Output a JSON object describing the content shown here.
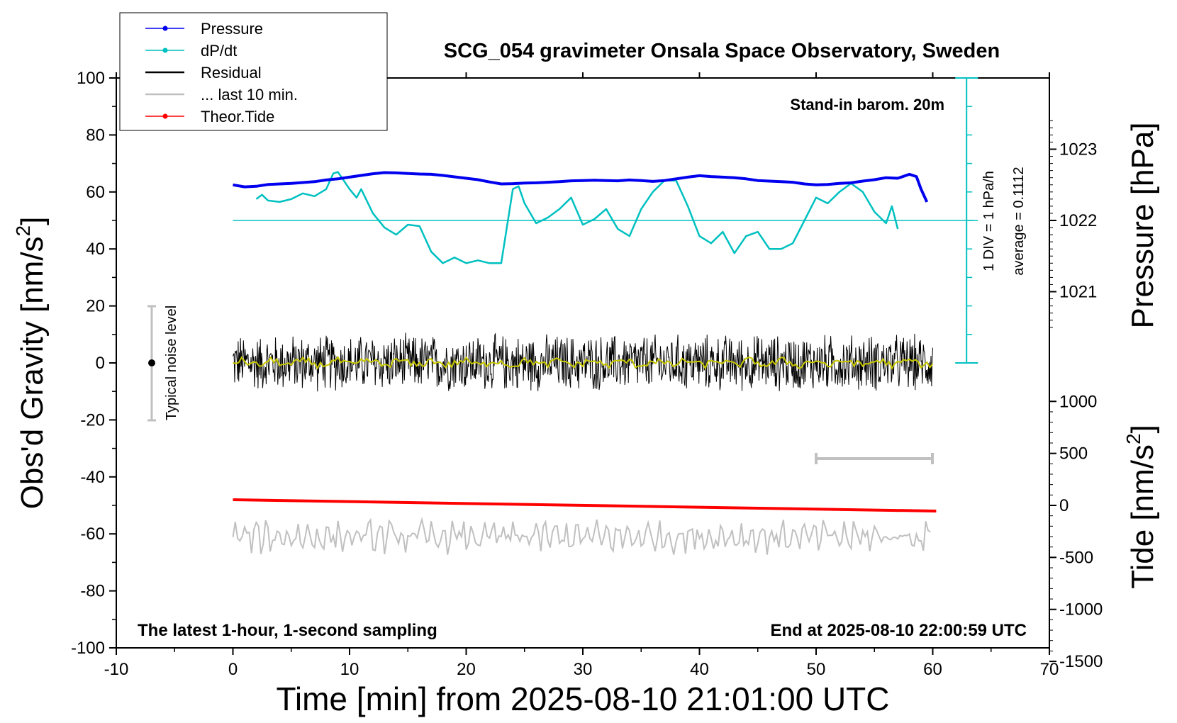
{
  "chart_data": {
    "type": "line",
    "title": "SCG_054 gravimeter Onsala Space Observatory, Sweden",
    "xlabel": "Time [min] from 2025-08-10 21:01:00 UTC",
    "ylabel_left": "Obs'd Gravity [nm/s",
    "ylabel_left_sup": "2",
    "ylabel_left_end": "]",
    "ylabel_right_top": "Pressure [hPa]",
    "ylabel_right_bottom": "Tide [nm/s",
    "ylabel_right_bottom_sup": "2",
    "ylabel_right_bottom_end": "]",
    "xlim": [
      -10,
      70
    ],
    "ylim": [
      -100,
      100
    ],
    "x_ticks": [
      "-10",
      "0",
      "10",
      "20",
      "30",
      "40",
      "50",
      "60",
      "70"
    ],
    "y_ticks": [
      "100",
      "80",
      "60",
      "40",
      "20",
      "0",
      "-20",
      "-40",
      "-60",
      "-80",
      "-100"
    ],
    "pressure_ticks": [
      "1023",
      "1022",
      "1021"
    ],
    "tide_ticks": [
      "1000",
      "500",
      "0",
      "-500",
      "-1000",
      "-1500"
    ],
    "pressure_axis": {
      "value_at_gravity_50": 1022,
      "hpa_per_nm": 0.04
    },
    "tide_axis": {
      "value_at_gravity_neg50": 0,
      "nm_per_gravity_unit": 27.4
    },
    "notes": {
      "standin": "Stand-in barom. 20m",
      "latest": "The latest 1-hour, 1-second sampling",
      "end": "End at 2025-08-10 22:00:59 UTC",
      "div": "1 DIV = 1 hPa/h",
      "average": "average = 0.1112",
      "noise": "Typical noise level"
    },
    "colors": {
      "pressure": "#0000ee",
      "dpdt": "#00c0c0",
      "residual": "#000000",
      "smooth": "#c8c800",
      "last10": "#c0c0c0",
      "tide": "#ff0000"
    },
    "legend": [
      {
        "label": "Pressure",
        "color": "#0000ee",
        "marker": true
      },
      {
        "label": "dP/dt",
        "color": "#00c0c0",
        "marker": true
      },
      {
        "label": "Residual",
        "color": "#000000",
        "marker": false
      },
      {
        "label": "... last 10 min.",
        "color": "#c0c0c0",
        "marker": false
      },
      {
        "label": "Theor.Tide",
        "color": "#ff0000",
        "marker": true
      }
    ],
    "legend_position": "top-left",
    "dpdt_reference_level": 50,
    "series": [
      {
        "name": "Pressure",
        "x": [
          0,
          1,
          2,
          3,
          4,
          5,
          6,
          7,
          8,
          9,
          10,
          11,
          12,
          13,
          14,
          15,
          16,
          17,
          18,
          19,
          20,
          21,
          22,
          23,
          24,
          25,
          26,
          27,
          28,
          29,
          30,
          31,
          32,
          33,
          34,
          35,
          36,
          37,
          38,
          39,
          40,
          41,
          42,
          43,
          44,
          45,
          46,
          47,
          48,
          49,
          50,
          51,
          52,
          53,
          54,
          55,
          56,
          57,
          58,
          58.6,
          59,
          59.5
        ],
        "y": [
          62.5,
          61.8,
          62.0,
          62.6,
          62.8,
          63.0,
          63.3,
          63.6,
          64.2,
          64.6,
          65.2,
          65.8,
          66.4,
          66.8,
          66.7,
          66.5,
          66.3,
          66.2,
          65.8,
          65.3,
          64.8,
          64.3,
          63.5,
          62.8,
          62.9,
          63.1,
          63.2,
          63.4,
          63.6,
          63.9,
          64.0,
          64.1,
          64.0,
          63.9,
          64.2,
          64.0,
          63.7,
          64.0,
          64.6,
          65.2,
          65.7,
          65.4,
          65.2,
          65.0,
          64.6,
          64.0,
          63.8,
          63.6,
          63.4,
          62.8,
          62.5,
          62.6,
          63.0,
          63.2,
          63.8,
          64.3,
          65.0,
          64.8,
          66.2,
          65.4,
          61.0,
          56.5
        ]
      },
      {
        "name": "dP/dt",
        "x": [
          2,
          2.5,
          3,
          4,
          5,
          6,
          7,
          8,
          8.6,
          9,
          9.5,
          10,
          10.6,
          11,
          12,
          13,
          14,
          15,
          16,
          17,
          18,
          19,
          20,
          21,
          22,
          23,
          24,
          24.5,
          25,
          26,
          27,
          28,
          29,
          30,
          31,
          32,
          33,
          34,
          35,
          36,
          37,
          38,
          39,
          40,
          41,
          42,
          43,
          44,
          45,
          46,
          47,
          48,
          49,
          50,
          51,
          52,
          53,
          54,
          55,
          56,
          56.5,
          57
        ],
        "y": [
          57.5,
          59,
          57,
          56.5,
          57.5,
          59.5,
          58.5,
          61,
          66.5,
          67,
          64,
          61,
          58,
          61,
          52.5,
          47.5,
          45,
          48.5,
          48,
          39,
          35,
          37,
          35,
          36,
          35,
          35,
          61,
          62,
          56,
          49,
          51,
          54,
          58,
          48.5,
          50.5,
          54,
          47,
          44.5,
          54,
          60,
          64,
          64,
          55,
          44.5,
          42,
          46,
          38.5,
          44.5,
          46,
          40,
          40,
          42,
          50,
          58,
          56,
          60,
          63,
          60,
          53,
          49,
          55,
          47
        ]
      },
      {
        "name": "Theor.Tide",
        "x": [
          0,
          60.3
        ],
        "y": [
          -48.0,
          -52.0
        ]
      }
    ]
  }
}
